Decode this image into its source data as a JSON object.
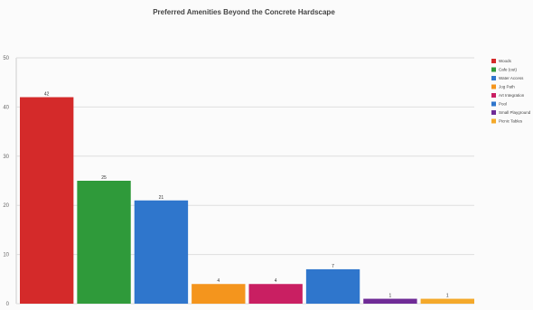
{
  "chart_data": {
    "type": "bar",
    "title": "Preferred Amenities Beyond the Concrete Hardscape",
    "xlabel": "",
    "ylabel": "",
    "ylim": [
      0,
      50
    ],
    "yticks": [
      0,
      10,
      20,
      30,
      40,
      50
    ],
    "grid": true,
    "legend_position": "right",
    "categories": [
      "Woods",
      "Cafe (out)",
      "Water Access",
      "Jog Path",
      "Art Integration",
      "Pool",
      "Small Playground",
      "Picnic Tables"
    ],
    "values": [
      42,
      25,
      21,
      4,
      4,
      7,
      1,
      1
    ],
    "colors": [
      "#d42a2a",
      "#2f9a3a",
      "#2f76cc",
      "#f4951d",
      "#c91f62",
      "#2f76cc",
      "#6f2b96",
      "#f4a92b"
    ]
  }
}
